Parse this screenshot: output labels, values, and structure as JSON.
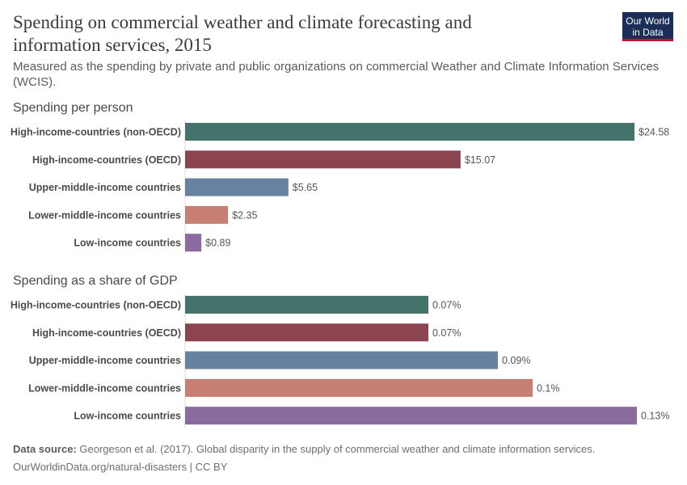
{
  "header": {
    "title": "Spending on commercial weather and climate forecasting and information services, 2015",
    "subtitle": "Measured as the spending by private and public organizations on commercial Weather and Climate Information Services (WCIS).",
    "logo": "Our World in Data"
  },
  "footer": {
    "source_label": "Data source:",
    "source": "Georgeson et al. (2017). Global disparity in the supply of commercial weather and climate information services.",
    "url": "OurWorldinData.org/natural-disasters | CC BY"
  },
  "chart_data": [
    {
      "type": "bar",
      "orientation": "horizontal",
      "title": "Spending per person",
      "categories": [
        "High-income-countries (non-OECD)",
        "High-income-countries (OECD)",
        "Upper-middle-income countries",
        "Lower-middle-income countries",
        "Low-income countries"
      ],
      "values": [
        24.58,
        15.07,
        5.65,
        2.35,
        0.89
      ],
      "labels": [
        "$24.58",
        "$15.07",
        "$5.65",
        "$2.35",
        "$0.89"
      ],
      "colors": [
        "#44736b",
        "#8c4450",
        "#6981a0",
        "#c67f72",
        "#8a6a9f"
      ]
    },
    {
      "type": "bar",
      "orientation": "horizontal",
      "title": "Spending as a share of GDP",
      "categories": [
        "High-income-countries (non-OECD)",
        "High-income-countries (OECD)",
        "Upper-middle-income countries",
        "Lower-middle-income countries",
        "Low-income countries"
      ],
      "values": [
        0.07,
        0.07,
        0.09,
        0.1,
        0.13
      ],
      "labels": [
        "0.07%",
        "0.07%",
        "0.09%",
        "0.1%",
        "0.13%"
      ],
      "colors": [
        "#44736b",
        "#8c4450",
        "#6981a0",
        "#c67f72",
        "#8a6a9f"
      ]
    }
  ]
}
